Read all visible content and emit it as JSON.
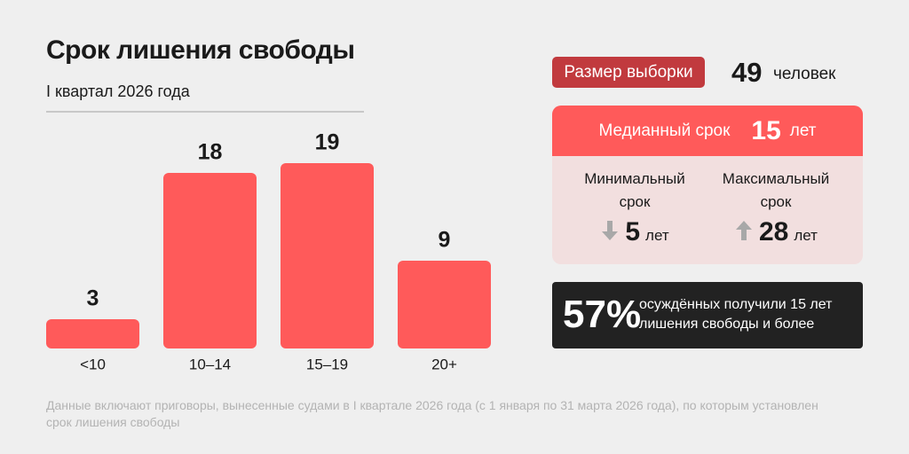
{
  "chart_data": {
    "type": "bar",
    "title": "Срок лишения свободы",
    "subtitle": "I квартал 2026 года",
    "categories": [
      "<10",
      "10–14",
      "15–19",
      "20+"
    ],
    "values": [
      3,
      18,
      19,
      9
    ],
    "color": "#ff5a5a"
  },
  "stats": {
    "sample": {
      "label": "Размер выборки",
      "value": 49,
      "unit": "человек"
    },
    "median": {
      "label": "Медианный срок",
      "value": 15,
      "unit": "лет"
    },
    "min": {
      "label": "Минимальный срок",
      "value": 5,
      "unit": "лет"
    },
    "max": {
      "label": "Максимальный срок",
      "value": 28,
      "unit": "лет"
    },
    "share": {
      "value": "57%",
      "text": "осуждённых получили 15 лет лишения свободы и более"
    }
  },
  "footnote": "Данные включают приговоры, вынесенные судами в I квартале 2026 года (с 1 января по 31 марта 2026 года), по которым установлен срок лишения свободы"
}
